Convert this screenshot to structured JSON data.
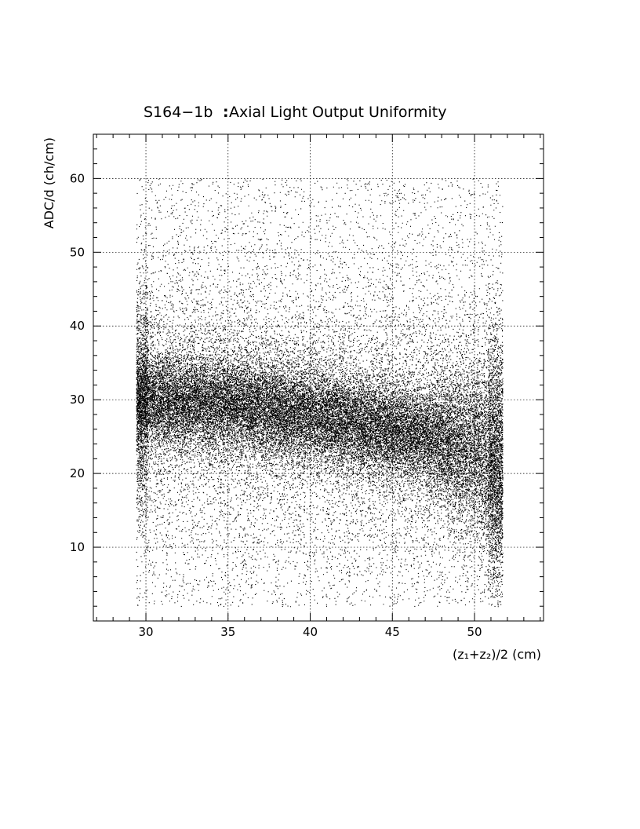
{
  "chart_data": {
    "type": "scatter",
    "title": "S164−1b",
    "title_suffix": "Axial Light Output Uniformity",
    "xlabel": "(z₁+z₂)/2 (cm)",
    "ylabel": "ADC/d (ch/cm)",
    "xlim": [
      26.8,
      54.2
    ],
    "ylim": [
      0,
      66
    ],
    "x_ticks": [
      30,
      35,
      40,
      45,
      50
    ],
    "x_tick_labels": [
      "30",
      "35",
      "40",
      "45",
      "50"
    ],
    "y_ticks": [
      10,
      20,
      30,
      40,
      50,
      60
    ],
    "y_tick_labels": [
      "10",
      "20",
      "30",
      "40",
      "50",
      "60"
    ],
    "grid": true,
    "legend": "none",
    "point_color": "#000000",
    "data_x_range": [
      29.4,
      51.7
    ],
    "data_y_range": [
      2,
      60
    ],
    "band_center": [
      {
        "x": 30,
        "y": 30
      },
      {
        "x": 35,
        "y": 29.5
      },
      {
        "x": 40,
        "y": 28
      },
      {
        "x": 45,
        "y": 26
      },
      {
        "x": 50,
        "y": 23.5
      },
      {
        "x": 51.5,
        "y": 21
      }
    ]
  }
}
